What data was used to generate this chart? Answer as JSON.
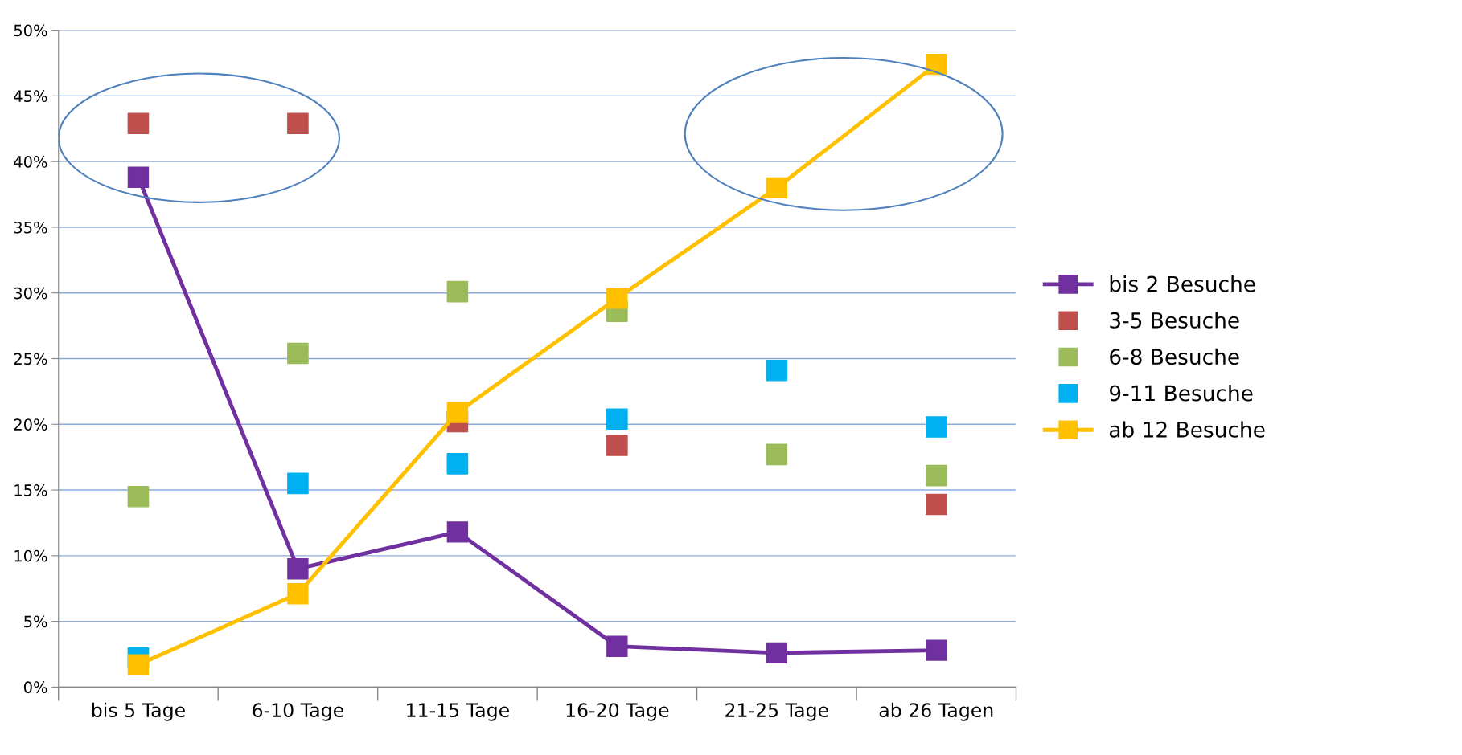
{
  "chart_data": {
    "type": "line",
    "categories": [
      "bis 5 Tage",
      "6-10 Tage",
      "11-15 Tage",
      "16-20 Tage",
      "21-25 Tage",
      "ab 26 Tagen"
    ],
    "series": [
      {
        "name": "bis 2 Besuche",
        "color": "#7030a0",
        "values": [
          38.8,
          9.0,
          11.8,
          3.1,
          2.6,
          2.8
        ]
      },
      {
        "name": "3-5 Besuche",
        "color": "#c0504d",
        "type": "scatter",
        "values": [
          42.9,
          42.9,
          20.2,
          18.4,
          null,
          13.9
        ]
      },
      {
        "name": "6-8 Besuche",
        "color": "#9bbb59",
        "type": "scatter",
        "values": [
          14.5,
          25.4,
          30.1,
          28.6,
          17.7,
          16.1
        ]
      },
      {
        "name": "9-11 Besuche",
        "color": "#00b0f0",
        "type": "scatter",
        "values": [
          2.2,
          15.5,
          17.0,
          20.4,
          24.1,
          19.8
        ]
      },
      {
        "name": "ab 12 Besuche",
        "color": "#ffc000",
        "values": [
          1.7,
          7.1,
          20.9,
          29.6,
          38.0,
          47.4
        ]
      }
    ],
    "ylim": [
      0,
      50
    ],
    "yticks": [
      {
        "value": 0,
        "label": "0%"
      },
      {
        "value": 5,
        "label": "5%"
      },
      {
        "value": 10,
        "label": "10%"
      },
      {
        "value": 15,
        "label": "15%"
      },
      {
        "value": 20,
        "label": "20%"
      },
      {
        "value": 25,
        "label": "25%"
      },
      {
        "value": 30,
        "label": "30%"
      },
      {
        "value": 35,
        "label": "35%"
      },
      {
        "value": 40,
        "label": "40%"
      },
      {
        "value": 45,
        "label": "45%"
      },
      {
        "value": 50,
        "label": "50%"
      }
    ],
    "grid": "y",
    "legend": "right",
    "marker": "square"
  }
}
